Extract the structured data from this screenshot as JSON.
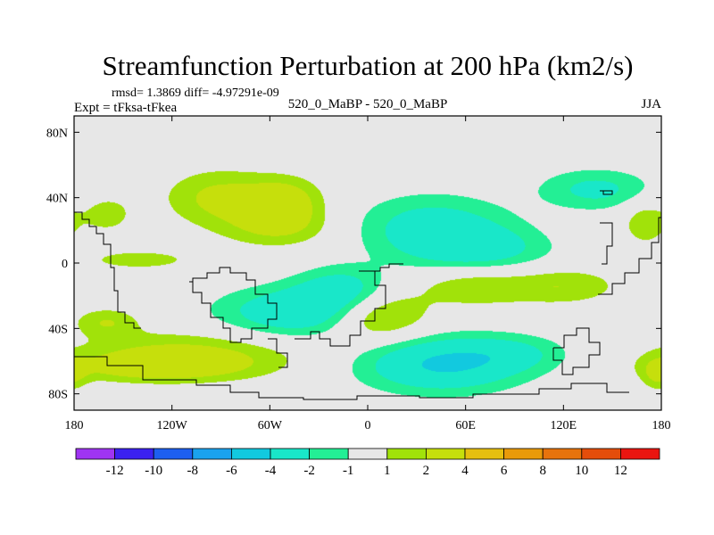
{
  "chart_data": {
    "type": "heatmap",
    "title": "Streamfunction Perturbation at 200 hPa (km2/s)",
    "stats_label": "rmsd= 1.3869 diff= -4.97291e-09",
    "left_label": "Expt = tFksa-tFkea",
    "center_label": "520_0_MaBP - 520_0_MaBP",
    "right_label": "JJA",
    "xlim": [
      -180,
      180
    ],
    "ylim": [
      -90,
      90
    ],
    "x_ticks": [
      {
        "value": -180,
        "label": "180"
      },
      {
        "value": -120,
        "label": "120W"
      },
      {
        "value": -60,
        "label": "60W"
      },
      {
        "value": 0,
        "label": "0"
      },
      {
        "value": 60,
        "label": "60E"
      },
      {
        "value": 120,
        "label": "120E"
      },
      {
        "value": 180,
        "label": "180"
      }
    ],
    "y_ticks": [
      {
        "value": 80,
        "label": "80N"
      },
      {
        "value": 40,
        "label": "40N"
      },
      {
        "value": 0,
        "label": "0"
      },
      {
        "value": -40,
        "label": "40S"
      },
      {
        "value": -80,
        "label": "80S"
      }
    ],
    "colorbar": {
      "colors": [
        "#9f34f2",
        "#3b21f0",
        "#1d5ff0",
        "#1aa2ee",
        "#12c9df",
        "#19e7c9",
        "#23ef95",
        "#e7e7e7",
        "#a1e20a",
        "#c6df0c",
        "#e6bf0f",
        "#e99a0a",
        "#e7730c",
        "#e44d0b",
        "#ea1510"
      ],
      "labels": [
        "-12",
        "-10",
        "-8",
        "-6",
        "-4",
        "-2",
        "-1",
        "1",
        "2",
        "4",
        "6",
        "8",
        "10",
        "12"
      ]
    },
    "features": [
      {
        "lon": -90,
        "lat": 40,
        "amp": 2.4,
        "sx": 24,
        "sy": 12
      },
      {
        "lon": -50,
        "lat": 38,
        "amp": 2.6,
        "sx": 16,
        "sy": 10
      },
      {
        "lon": -55,
        "lat": 22,
        "amp": 2.0,
        "sx": 24,
        "sy": 9
      },
      {
        "lon": -140,
        "lat": 2,
        "amp": 1.7,
        "sx": 22,
        "sy": 4
      },
      {
        "lon": -160,
        "lat": 30,
        "amp": 1.6,
        "sx": 11,
        "sy": 8
      },
      {
        "lon": -160,
        "lat": -36,
        "amp": 1.9,
        "sx": 14,
        "sy": 6
      },
      {
        "lon": -40,
        "lat": -30,
        "amp": -3.6,
        "sx": 36,
        "sy": 11
      },
      {
        "lon": -15,
        "lat": -16,
        "amp": -2.6,
        "sx": 20,
        "sy": 10
      },
      {
        "lon": -110,
        "lat": -56,
        "amp": 2.4,
        "sx": 48,
        "sy": 10
      },
      {
        "lon": -130,
        "lat": -64,
        "amp": 2.2,
        "sx": 38,
        "sy": 6
      },
      {
        "lon": 5,
        "lat": -32,
        "amp": 3.6,
        "sx": 22,
        "sy": 11
      },
      {
        "lon": 65,
        "lat": -14,
        "amp": 1.9,
        "sx": 24,
        "sy": 9
      },
      {
        "lon": 120,
        "lat": -14,
        "amp": 1.9,
        "sx": 24,
        "sy": 8
      },
      {
        "lon": 45,
        "lat": -62,
        "amp": -4.2,
        "sx": 35,
        "sy": 12
      },
      {
        "lon": 90,
        "lat": -55,
        "amp": -1.6,
        "sx": 25,
        "sy": 8
      },
      {
        "lon": 40,
        "lat": 22,
        "amp": -2.8,
        "sx": 33,
        "sy": 14
      },
      {
        "lon": 70,
        "lat": 8,
        "amp": -2.4,
        "sx": 30,
        "sy": 10
      },
      {
        "lon": 140,
        "lat": 45,
        "amp": -2.4,
        "sx": 25,
        "sy": 9
      },
      {
        "lon": 170,
        "lat": 25,
        "amp": 1.8,
        "sx": 10,
        "sy": 10
      },
      {
        "lon": 178,
        "lat": -68,
        "amp": 1.9,
        "sx": 7,
        "sy": 7
      }
    ]
  }
}
